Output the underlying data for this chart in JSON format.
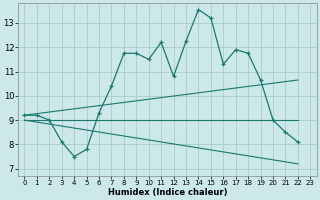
{
  "xlabel": "Humidex (Indice chaleur)",
  "background_color": "#cce8e8",
  "grid_color": "#aacccc",
  "line_color": "#1a7870",
  "x_ticks": [
    0,
    1,
    2,
    3,
    4,
    5,
    6,
    7,
    8,
    9,
    10,
    11,
    12,
    13,
    14,
    15,
    16,
    17,
    18,
    19,
    20,
    21,
    22,
    23
  ],
  "y_ticks": [
    7,
    8,
    9,
    10,
    11,
    12,
    13
  ],
  "ylim": [
    6.7,
    13.8
  ],
  "xlim": [
    -0.5,
    23.5
  ],
  "main_line_x": [
    0,
    1,
    2,
    3,
    4,
    5,
    6,
    7,
    8,
    9,
    10,
    11,
    12,
    13,
    14,
    15,
    16,
    17,
    18,
    19,
    20,
    21,
    22
  ],
  "main_line_y": [
    9.2,
    9.2,
    9.0,
    8.1,
    7.5,
    7.8,
    9.3,
    10.4,
    11.75,
    11.75,
    11.5,
    12.2,
    10.8,
    12.25,
    13.55,
    13.2,
    11.3,
    11.9,
    11.75,
    10.65,
    9.0,
    8.5,
    8.1
  ],
  "upper_line_x": [
    0,
    22
  ],
  "upper_line_y": [
    9.2,
    10.65
  ],
  "lower_line_x": [
    0,
    22
  ],
  "lower_line_y": [
    9.0,
    7.2
  ],
  "flat_line_x": [
    0,
    22
  ],
  "flat_line_y": [
    9.0,
    9.0
  ]
}
